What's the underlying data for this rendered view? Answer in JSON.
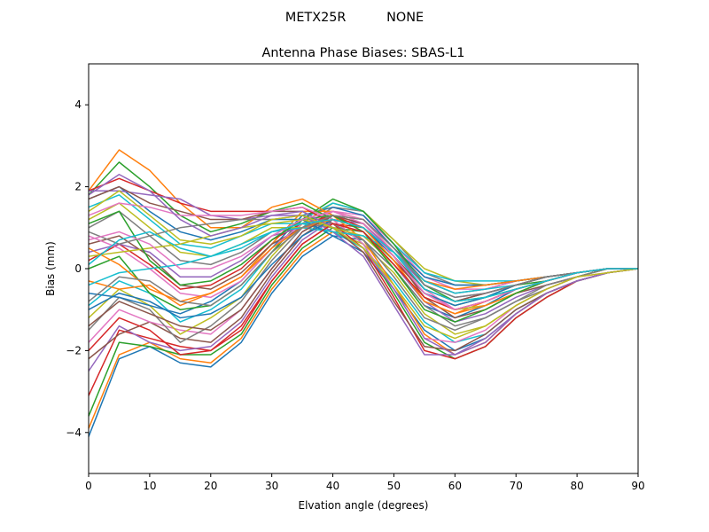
{
  "suptitle": "METX25R          NONE",
  "chart_data": {
    "type": "line",
    "title": "Antenna Phase Biases: SBAS-L1",
    "xlabel": "Elvation angle (degrees)",
    "ylabel": "Bias (mm)",
    "xlim": [
      0,
      90
    ],
    "ylim": [
      -5,
      5
    ],
    "xticks": [
      "0",
      "10",
      "20",
      "30",
      "40",
      "50",
      "60",
      "70",
      "80",
      "90"
    ],
    "yticks": [
      "4",
      "2",
      "0",
      "−2",
      "−4"
    ],
    "grid": false,
    "legend": "none",
    "palette": [
      "#1f77b4",
      "#ff7f0e",
      "#2ca02c",
      "#d62728",
      "#9467bd",
      "#8c564b",
      "#e377c2",
      "#7f7f7f",
      "#bcbd22",
      "#17becf"
    ],
    "x": [
      0,
      5,
      10,
      15,
      20,
      25,
      30,
      35,
      40,
      45,
      50,
      55,
      60,
      65,
      70,
      75,
      80,
      85,
      90
    ],
    "series": [
      {
        "values": [
          -4.1,
          -2.2,
          -1.9,
          -2.3,
          -2.4,
          -1.8,
          -0.6,
          0.3,
          0.8,
          0.7,
          0.0,
          -0.9,
          -1.2,
          -0.9,
          -0.5,
          -0.3,
          -0.1,
          0.0,
          0.0
        ]
      },
      {
        "values": [
          -3.9,
          -2.1,
          -1.8,
          -2.2,
          -2.3,
          -1.7,
          -0.5,
          0.4,
          0.9,
          0.8,
          0.1,
          -0.8,
          -1.1,
          -0.8,
          -0.5,
          -0.3,
          -0.1,
          0.0,
          0.0
        ]
      },
      {
        "values": [
          -3.6,
          -1.8,
          -1.9,
          -2.1,
          -2.1,
          -1.6,
          -0.4,
          0.5,
          1.0,
          0.9,
          0.2,
          -0.6,
          -0.9,
          -0.7,
          -0.4,
          -0.3,
          -0.1,
          0.0,
          0.0
        ]
      },
      {
        "values": [
          -3.1,
          -1.5,
          -1.7,
          -1.9,
          -2.0,
          -1.4,
          -0.3,
          0.6,
          1.1,
          1.0,
          0.3,
          -0.5,
          -0.8,
          -0.6,
          -0.4,
          -0.2,
          -0.1,
          0.0,
          0.0
        ]
      },
      {
        "values": [
          -2.5,
          -1.4,
          -1.8,
          -2.0,
          -1.9,
          -1.3,
          -0.2,
          0.7,
          1.2,
          1.1,
          0.4,
          -0.4,
          -0.7,
          -0.6,
          -0.4,
          -0.2,
          -0.1,
          0.0,
          0.0
        ]
      },
      {
        "values": [
          -2.2,
          -1.6,
          -1.3,
          -1.7,
          -1.8,
          -1.2,
          -0.1,
          0.8,
          1.3,
          1.2,
          0.5,
          -0.3,
          -0.6,
          -0.5,
          -0.3,
          -0.2,
          -0.1,
          0.0,
          0.0
        ]
      },
      {
        "values": [
          -1.8,
          -1.0,
          -1.3,
          -1.5,
          -1.6,
          -1.0,
          0.0,
          0.9,
          1.4,
          1.3,
          0.6,
          -0.2,
          -0.5,
          -0.5,
          -0.3,
          -0.2,
          -0.1,
          0.0,
          0.0
        ]
      },
      {
        "values": [
          -1.5,
          -0.7,
          -1.0,
          -1.8,
          -1.4,
          -0.8,
          0.2,
          1.0,
          1.5,
          1.4,
          0.7,
          -0.1,
          -0.4,
          -0.4,
          -0.3,
          -0.2,
          -0.1,
          0.0,
          0.0
        ]
      },
      {
        "values": [
          -1.2,
          -0.5,
          -0.9,
          -1.6,
          -1.2,
          -0.7,
          0.3,
          1.1,
          1.6,
          1.4,
          0.7,
          0.0,
          -0.3,
          -0.4,
          -0.3,
          -0.2,
          -0.1,
          0.0,
          0.0
        ]
      },
      {
        "values": [
          -0.9,
          -0.3,
          -0.6,
          -1.3,
          -1.0,
          -0.5,
          0.4,
          1.2,
          1.6,
          1.4,
          0.6,
          -0.1,
          -0.3,
          -0.3,
          -0.3,
          -0.2,
          -0.1,
          0.0,
          0.0
        ]
      },
      {
        "values": [
          -0.6,
          -0.7,
          -0.9,
          -1.1,
          -0.8,
          -0.3,
          0.5,
          1.3,
          1.5,
          1.3,
          0.5,
          -0.2,
          -0.4,
          -0.4,
          -0.3,
          -0.2,
          -0.1,
          0.0,
          0.0
        ]
      },
      {
        "values": [
          -0.3,
          -0.5,
          -0.4,
          -0.9,
          -0.6,
          -0.2,
          0.6,
          1.4,
          1.4,
          1.2,
          0.4,
          -0.3,
          -0.5,
          -0.4,
          -0.3,
          -0.2,
          -0.1,
          0.0,
          0.0
        ]
      },
      {
        "values": [
          0.0,
          0.3,
          -0.6,
          -1.0,
          -0.9,
          -0.4,
          0.4,
          1.2,
          1.7,
          1.4,
          0.6,
          -0.4,
          -0.8,
          -0.7,
          -0.5,
          -0.3,
          -0.1,
          0.0,
          0.0
        ]
      },
      {
        "values": [
          0.2,
          0.6,
          0.1,
          -0.5,
          -0.4,
          0.0,
          0.7,
          1.1,
          1.3,
          1.0,
          0.2,
          -0.6,
          -1.0,
          -0.8,
          -0.5,
          -0.3,
          -0.1,
          0.0,
          0.0
        ]
      },
      {
        "values": [
          0.4,
          0.6,
          0.4,
          -0.2,
          -0.2,
          0.2,
          0.8,
          1.0,
          1.1,
          0.9,
          0.1,
          -0.8,
          -1.3,
          -1.1,
          -0.7,
          -0.4,
          -0.2,
          0.0,
          0.0
        ]
      },
      {
        "values": [
          0.6,
          0.8,
          0.3,
          -0.4,
          -0.5,
          -0.1,
          0.6,
          1.0,
          1.3,
          1.1,
          0.3,
          -0.7,
          -1.2,
          -1.0,
          -0.6,
          -0.4,
          -0.2,
          0.0,
          0.0
        ]
      },
      {
        "values": [
          0.8,
          0.5,
          0.0,
          -0.6,
          -0.7,
          -0.3,
          0.5,
          1.1,
          1.4,
          1.2,
          0.4,
          -0.5,
          -1.0,
          -0.9,
          -0.6,
          -0.3,
          -0.1,
          0.0,
          0.0
        ]
      },
      {
        "values": [
          1.0,
          1.4,
          0.8,
          0.2,
          0.1,
          0.4,
          0.9,
          1.1,
          1.0,
          0.7,
          0.0,
          -0.9,
          -1.4,
          -1.2,
          -0.8,
          -0.5,
          -0.2,
          0.0,
          0.0
        ]
      },
      {
        "values": [
          1.2,
          1.6,
          1.0,
          0.4,
          0.3,
          0.6,
          1.0,
          1.0,
          0.9,
          0.6,
          -0.1,
          -1.1,
          -1.6,
          -1.4,
          -0.9,
          -0.5,
          -0.2,
          0.0,
          0.0
        ]
      },
      {
        "values": [
          1.5,
          1.8,
          1.2,
          0.6,
          0.5,
          0.8,
          1.1,
          1.1,
          0.9,
          0.5,
          -0.3,
          -1.3,
          -1.8,
          -1.6,
          -1.0,
          -0.6,
          -0.3,
          -0.1,
          0.0
        ]
      },
      {
        "values": [
          1.7,
          2.0,
          1.4,
          0.9,
          0.7,
          0.9,
          1.2,
          1.2,
          0.8,
          0.4,
          -0.5,
          -1.5,
          -2.0,
          -1.7,
          -1.1,
          -0.6,
          -0.3,
          -0.1,
          0.0
        ]
      },
      {
        "values": [
          1.9,
          2.9,
          2.4,
          1.6,
          1.0,
          1.0,
          1.5,
          1.7,
          1.3,
          0.7,
          -0.4,
          -1.6,
          -2.1,
          -1.8,
          -1.1,
          -0.6,
          -0.3,
          -0.1,
          0.0
        ]
      },
      {
        "values": [
          1.8,
          2.6,
          2.0,
          1.3,
          0.9,
          1.1,
          1.4,
          1.6,
          1.2,
          0.6,
          -0.6,
          -1.8,
          -2.2,
          -1.9,
          -1.2,
          -0.7,
          -0.3,
          -0.1,
          0.0
        ]
      },
      {
        "values": [
          1.9,
          2.2,
          1.9,
          1.6,
          1.4,
          1.4,
          1.4,
          1.5,
          1.1,
          0.5,
          -0.7,
          -2.0,
          -2.2,
          -1.9,
          -1.2,
          -0.7,
          -0.3,
          -0.1,
          0.0
        ]
      },
      {
        "values": [
          1.9,
          1.9,
          1.8,
          1.7,
          1.3,
          1.2,
          1.3,
          1.3,
          0.9,
          0.3,
          -0.9,
          -2.1,
          -2.1,
          -1.7,
          -1.1,
          -0.6,
          -0.3,
          -0.1,
          0.0
        ]
      },
      {
        "values": [
          1.7,
          2.0,
          1.6,
          1.4,
          1.2,
          1.2,
          1.4,
          1.4,
          1.0,
          0.4,
          -0.8,
          -1.9,
          -2.0,
          -1.6,
          -1.0,
          -0.6,
          -0.3,
          -0.1,
          0.0
        ]
      },
      {
        "values": [
          1.3,
          1.6,
          1.5,
          1.3,
          1.3,
          1.3,
          1.4,
          1.5,
          1.2,
          0.6,
          -0.5,
          -1.7,
          -1.8,
          -1.5,
          -0.9,
          -0.5,
          -0.2,
          -0.1,
          0.0
        ]
      },
      {
        "values": [
          0.9,
          0.6,
          0.8,
          1.0,
          1.1,
          1.2,
          1.2,
          1.3,
          1.1,
          0.7,
          -0.2,
          -1.2,
          -1.5,
          -1.2,
          -0.8,
          -0.4,
          -0.2,
          0.0,
          0.0
        ]
      },
      {
        "values": [
          0.3,
          0.4,
          0.5,
          0.6,
          0.8,
          1.0,
          1.1,
          1.2,
          1.0,
          0.8,
          0.1,
          -0.7,
          -1.0,
          -0.9,
          -0.6,
          -0.3,
          -0.1,
          0.0,
          0.0
        ]
      },
      {
        "values": [
          -0.4,
          -0.1,
          0.0,
          0.1,
          0.3,
          0.6,
          0.9,
          1.0,
          0.9,
          0.8,
          0.4,
          -0.3,
          -0.6,
          -0.5,
          -0.4,
          -0.2,
          -0.1,
          0.0,
          0.0
        ]
      },
      {
        "values": [
          -1.0,
          -0.6,
          -0.8,
          -1.2,
          -1.1,
          -0.7,
          0.1,
          0.8,
          1.2,
          1.0,
          0.3,
          -0.6,
          -0.9,
          -0.7,
          -0.4,
          -0.2,
          -0.1,
          0.0,
          0.0
        ]
      },
      {
        "values": [
          0.5,
          0.1,
          -0.5,
          -0.8,
          -0.6,
          -0.2,
          0.5,
          1.0,
          1.2,
          1.0,
          0.2,
          -0.8,
          -1.1,
          -0.9,
          -0.6,
          -0.3,
          -0.1,
          0.0,
          0.0
        ]
      },
      {
        "values": [
          1.1,
          1.4,
          0.2,
          -0.4,
          -0.3,
          0.1,
          0.7,
          1.2,
          1.3,
          0.9,
          0.0,
          -1.0,
          -1.3,
          -1.0,
          -0.6,
          -0.3,
          -0.1,
          0.0,
          0.0
        ]
      },
      {
        "values": [
          -2.0,
          -1.2,
          -1.5,
          -2.1,
          -2.0,
          -1.5,
          -0.3,
          0.6,
          1.1,
          0.9,
          0.1,
          -0.7,
          -1.0,
          -0.8,
          -0.5,
          -0.3,
          -0.1,
          0.0,
          0.0
        ]
      },
      {
        "values": [
          1.8,
          2.3,
          1.9,
          1.2,
          0.8,
          1.0,
          1.3,
          1.4,
          1.0,
          0.5,
          -0.5,
          -1.7,
          -2.1,
          -1.8,
          -1.1,
          -0.6,
          -0.3,
          -0.1,
          0.0
        ]
      },
      {
        "values": [
          -1.4,
          -0.8,
          -1.1,
          -1.4,
          -1.5,
          -1.0,
          0.0,
          0.9,
          1.3,
          1.1,
          0.3,
          -0.5,
          -0.8,
          -0.6,
          -0.4,
          -0.2,
          -0.1,
          0.0,
          0.0
        ]
      },
      {
        "values": [
          0.7,
          0.9,
          0.6,
          0.0,
          0.0,
          0.3,
          0.8,
          1.2,
          1.4,
          1.1,
          0.3,
          -0.6,
          -1.0,
          -0.8,
          -0.5,
          -0.3,
          -0.1,
          0.0,
          0.0
        ]
      },
      {
        "values": [
          -0.8,
          -0.2,
          -0.3,
          -0.8,
          -0.9,
          -0.4,
          0.4,
          1.0,
          1.3,
          1.2,
          0.5,
          -0.4,
          -0.7,
          -0.6,
          -0.4,
          -0.2,
          -0.1,
          0.0,
          0.0
        ]
      },
      {
        "values": [
          1.4,
          1.9,
          1.3,
          0.7,
          0.6,
          0.8,
          1.2,
          1.3,
          1.0,
          0.5,
          -0.4,
          -1.4,
          -1.7,
          -1.4,
          -0.9,
          -0.5,
          -0.2,
          -0.1,
          0.0
        ]
      },
      {
        "values": [
          0.1,
          0.7,
          0.9,
          0.5,
          0.3,
          0.5,
          0.9,
          1.1,
          1.2,
          1.0,
          0.4,
          -0.5,
          -0.8,
          -0.7,
          -0.5,
          -0.3,
          -0.1,
          0.0,
          0.0
        ]
      }
    ]
  }
}
